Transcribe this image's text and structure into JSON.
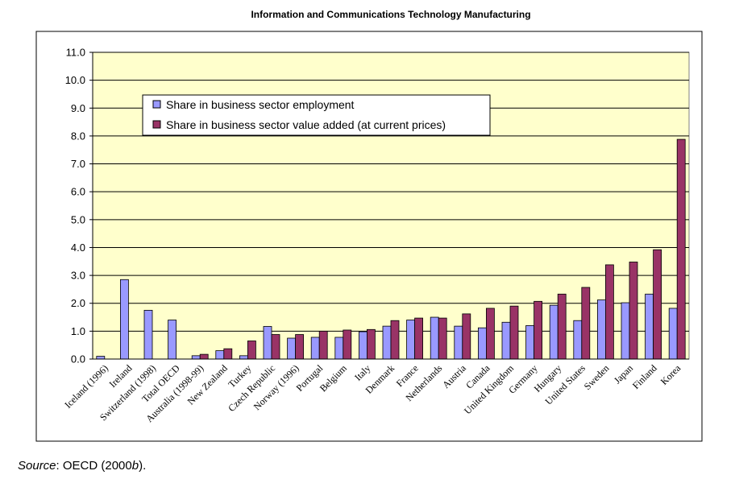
{
  "chart_data": {
    "type": "bar",
    "title": "Information and Communications Technology Manufacturing",
    "xlabel": "",
    "ylabel": "",
    "ylim": [
      0,
      11
    ],
    "yticks": [
      "0.0",
      "1.0",
      "2.0",
      "3.0",
      "4.0",
      "5.0",
      "6.0",
      "7.0",
      "8.0",
      "9.0",
      "10.0",
      "11.0"
    ],
    "grid": true,
    "legend_position": "top-left",
    "categories": [
      "Iceland (1996)",
      "Ireland",
      "Switzerland (1998)",
      "Total OECD",
      "Australia (1998-99)",
      "New Zealand",
      "Turkey",
      "Czech Republic",
      "Norway (1996)",
      "Portugal",
      "Belgium",
      "Italy",
      "Denmark",
      "France",
      "Netherlands",
      "Austria",
      "Canada",
      "United Kingdom",
      "Germany",
      "Hungary",
      "United States",
      "Sweden",
      "Japan",
      "Finland",
      "Korea"
    ],
    "series": [
      {
        "name": "Share in business sector employment",
        "color": "#9999ff",
        "values": [
          0.1,
          2.85,
          1.75,
          1.4,
          0.12,
          0.3,
          0.12,
          1.17,
          0.75,
          0.78,
          0.78,
          0.98,
          1.18,
          1.4,
          1.5,
          1.18,
          1.12,
          1.32,
          1.2,
          1.93,
          1.38,
          2.12,
          2.02,
          2.33,
          1.82
        ]
      },
      {
        "name": "Share in business sector value added (at current prices)",
        "color": "#993366",
        "values": [
          null,
          null,
          null,
          null,
          0.17,
          0.37,
          0.65,
          0.88,
          0.88,
          1.0,
          1.04,
          1.06,
          1.38,
          1.47,
          1.47,
          1.62,
          1.82,
          1.9,
          2.07,
          2.33,
          2.57,
          3.38,
          3.48,
          3.92,
          7.88
        ]
      }
    ],
    "plot_background": "#ffffcc",
    "frame_color": "#000000"
  },
  "source": {
    "prefix": "Source",
    "text": ": OECD (2000",
    "italic_suffix": "b",
    "end": ")."
  }
}
